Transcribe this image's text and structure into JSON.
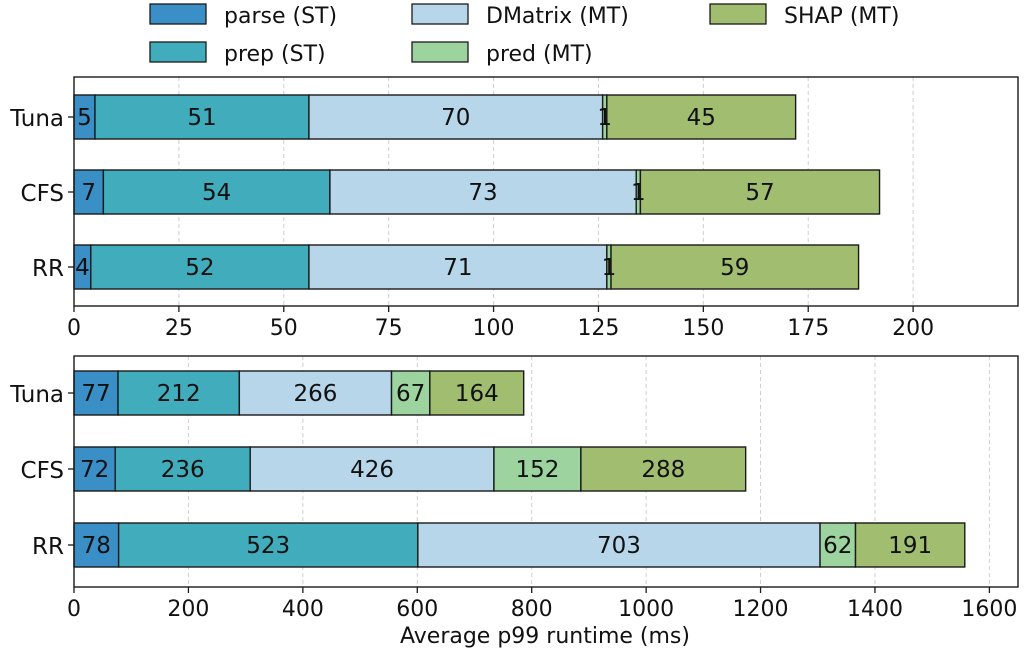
{
  "colors": {
    "parse": "#3a8fc7",
    "prep": "#41acbb",
    "dmatrix": "#b8d6ea",
    "pred": "#9dd39e",
    "shap": "#a0bd70",
    "edge": "#1a1a1a",
    "grid": "#cfcfcf"
  },
  "legend": [
    {
      "key": "parse",
      "label": "parse (ST)"
    },
    {
      "key": "dmatrix",
      "label": "DMatrix (MT)"
    },
    {
      "key": "shap",
      "label": "SHAP (MT)"
    },
    {
      "key": "prep",
      "label": "prep (ST)"
    },
    {
      "key": "pred",
      "label": "pred (MT)"
    }
  ],
  "chart_data": [
    {
      "type": "bar",
      "orientation": "horizontal",
      "stacked": true,
      "categories": [
        "Tuna",
        "CFS",
        "RR"
      ],
      "series": [
        {
          "name": "parse (ST)",
          "key": "parse",
          "values": [
            5,
            7,
            4
          ]
        },
        {
          "name": "prep (ST)",
          "key": "prep",
          "values": [
            51,
            54,
            52
          ]
        },
        {
          "name": "DMatrix (MT)",
          "key": "dmatrix",
          "values": [
            70,
            73,
            71
          ]
        },
        {
          "name": "pred (MT)",
          "key": "pred",
          "values": [
            1,
            1,
            1
          ]
        },
        {
          "name": "SHAP (MT)",
          "key": "shap",
          "values": [
            45,
            57,
            59
          ]
        }
      ],
      "xlim": [
        0,
        225
      ],
      "xticks": [
        0,
        25,
        50,
        75,
        100,
        125,
        150,
        175,
        200
      ],
      "xlabel": "",
      "grid": "vertical",
      "legend_position": "top"
    },
    {
      "type": "bar",
      "orientation": "horizontal",
      "stacked": true,
      "categories": [
        "Tuna",
        "CFS",
        "RR"
      ],
      "series": [
        {
          "name": "parse (ST)",
          "key": "parse",
          "values": [
            77,
            72,
            78
          ]
        },
        {
          "name": "prep (ST)",
          "key": "prep",
          "values": [
            212,
            236,
            523
          ]
        },
        {
          "name": "DMatrix (MT)",
          "key": "dmatrix",
          "values": [
            266,
            426,
            703
          ]
        },
        {
          "name": "pred (MT)",
          "key": "pred",
          "values": [
            67,
            152,
            62
          ]
        },
        {
          "name": "SHAP (MT)",
          "key": "shap",
          "values": [
            164,
            288,
            191
          ]
        }
      ],
      "xlim": [
        0,
        1650
      ],
      "xticks": [
        0,
        200,
        400,
        600,
        800,
        1000,
        1200,
        1400,
        1600
      ],
      "xlabel": "Average p99 runtime (ms)",
      "grid": "vertical"
    }
  ]
}
